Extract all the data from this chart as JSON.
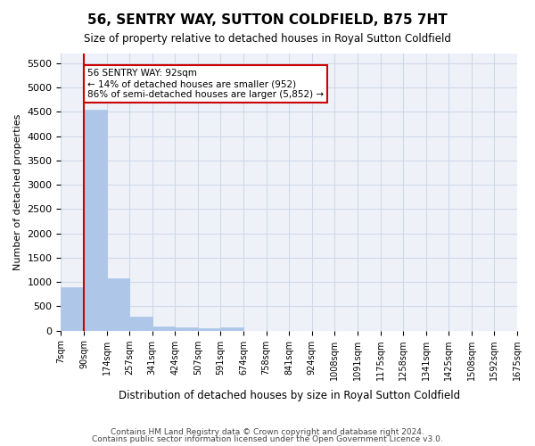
{
  "title": "56, SENTRY WAY, SUTTON COLDFIELD, B75 7HT",
  "subtitle": "Size of property relative to detached houses in Royal Sutton Coldfield",
  "xlabel": "Distribution of detached houses by size in Royal Sutton Coldfield",
  "ylabel": "Number of detached properties",
  "footer_line1": "Contains HM Land Registry data © Crown copyright and database right 2024.",
  "footer_line2": "Contains public sector information licensed under the Open Government Licence v3.0.",
  "bin_labels": [
    "7sqm",
    "90sqm",
    "174sqm",
    "257sqm",
    "341sqm",
    "424sqm",
    "507sqm",
    "591sqm",
    "674sqm",
    "758sqm",
    "841sqm",
    "924sqm",
    "1008sqm",
    "1091sqm",
    "1175sqm",
    "1258sqm",
    "1341sqm",
    "1425sqm",
    "1508sqm",
    "1592sqm",
    "1675sqm"
  ],
  "bar_values": [
    900,
    4550,
    1070,
    280,
    90,
    70,
    50,
    60,
    0,
    0,
    0,
    0,
    0,
    0,
    0,
    0,
    0,
    0,
    0,
    0
  ],
  "bar_color": "#aec6e8",
  "bar_edge_color": "#aec6e8",
  "grid_color": "#d0d8e8",
  "background_color": "#eef2f8",
  "vline_color": "#cc0000",
  "ylim": [
    0,
    5700
  ],
  "yticks": [
    0,
    500,
    1000,
    1500,
    2000,
    2500,
    3000,
    3500,
    4000,
    4500,
    5000,
    5500
  ],
  "annotation_text": "56 SENTRY WAY: 92sqm\n← 14% of detached houses are smaller (952)\n86% of semi-detached houses are larger (5,852) →",
  "annotation_box_color": "#ffffff",
  "annotation_box_edge": "#cc0000",
  "vline_position": 1.0
}
